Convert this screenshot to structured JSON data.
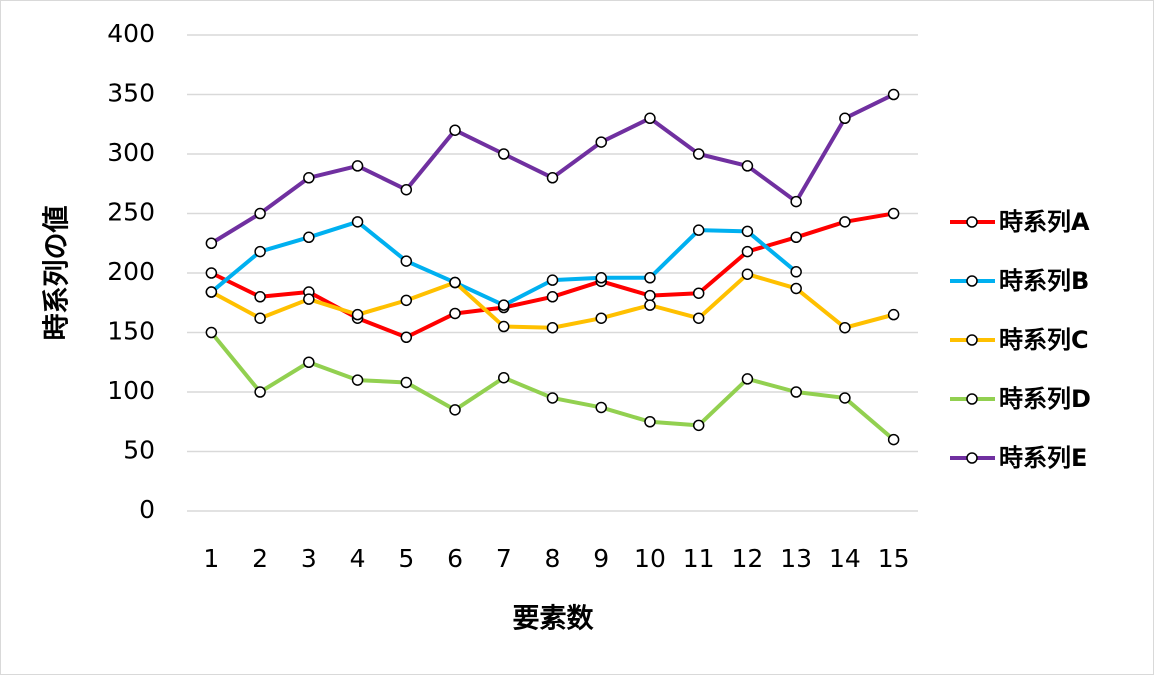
{
  "chart_data": {
    "type": "line",
    "y_label": "時系列の値",
    "x_label": "要素数",
    "categories": [
      "1",
      "2",
      "3",
      "4",
      "5",
      "6",
      "7",
      "8",
      "9",
      "10",
      "11",
      "12",
      "13",
      "14",
      "15"
    ],
    "ylim": [
      0,
      400
    ],
    "yticks": [
      0,
      50,
      100,
      150,
      200,
      250,
      300,
      350,
      400
    ],
    "grid": true,
    "series": [
      {
        "name": "時系列A",
        "color": "#ff0000",
        "values": [
          200,
          180,
          184,
          162,
          146,
          166,
          171,
          180,
          193,
          181,
          183,
          218,
          230,
          243,
          250
        ]
      },
      {
        "name": "時系列B",
        "color": "#00b0f0",
        "values": [
          184,
          218,
          230,
          243,
          210,
          192,
          173,
          194,
          196,
          196,
          236,
          235,
          201,
          null,
          null
        ]
      },
      {
        "name": "時系列C",
        "color": "#ffc000",
        "values": [
          184,
          162,
          178,
          165,
          177,
          192,
          155,
          154,
          162,
          173,
          162,
          199,
          187,
          154,
          165
        ]
      },
      {
        "name": "時系列D",
        "color": "#92d050",
        "values": [
          150,
          100,
          125,
          110,
          108,
          85,
          112,
          95,
          87,
          75,
          72,
          111,
          100,
          95,
          60
        ]
      },
      {
        "name": "時系列E",
        "color": "#7030a0",
        "values": [
          225,
          250,
          280,
          290,
          270,
          320,
          300,
          280,
          310,
          330,
          300,
          290,
          260,
          330,
          350
        ]
      }
    ]
  }
}
